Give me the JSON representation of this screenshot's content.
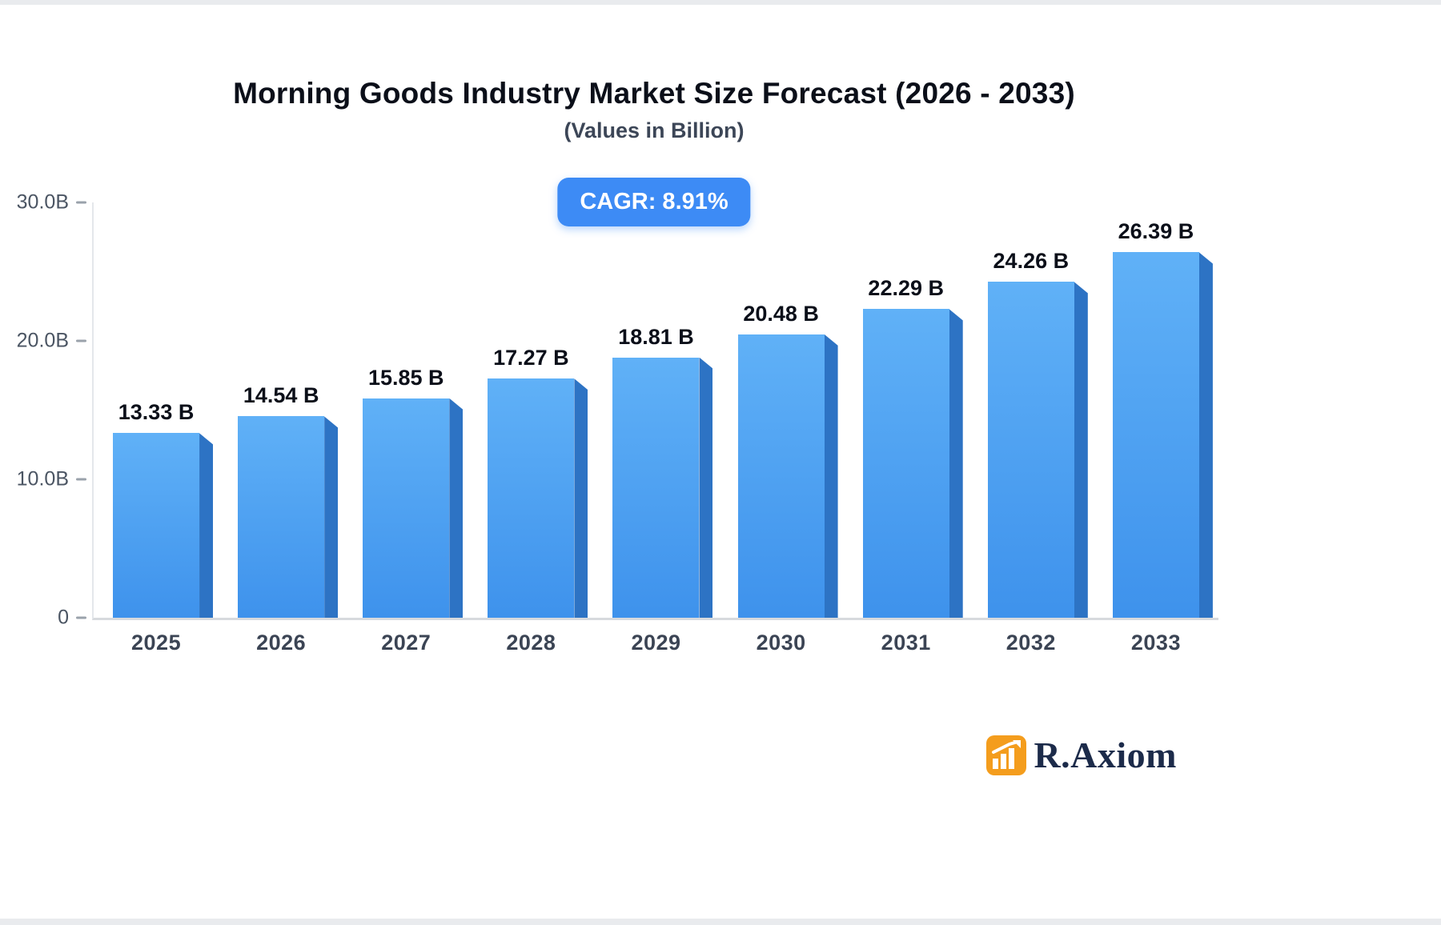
{
  "header": {
    "title": "Morning Goods Industry Market Size Forecast (2026 - 2033)",
    "subtitle": "(Values in Billion)"
  },
  "badge": {
    "label": "CAGR: 8.91%",
    "bg_color": "#3d8bf5"
  },
  "logo": {
    "text": "R.Axiom",
    "icon": "bar-chart-icon",
    "icon_color": "#f49d1d",
    "text_color": "#1c2b4a"
  },
  "chart_data": {
    "type": "bar",
    "title": "Morning Goods Industry Market Size Forecast (2026 - 2033)",
    "subtitle": "(Values in Billion)",
    "categories": [
      "2025",
      "2026",
      "2027",
      "2028",
      "2029",
      "2030",
      "2031",
      "2032",
      "2033"
    ],
    "values": [
      13.33,
      14.54,
      15.85,
      17.27,
      18.81,
      20.48,
      22.29,
      24.26,
      26.39
    ],
    "value_labels": [
      "13.33 B",
      "14.54 B",
      "15.85 B",
      "17.27 B",
      "18.81 B",
      "20.48 B",
      "22.29 B",
      "24.26 B",
      "26.39 B"
    ],
    "unit": "Billion",
    "cagr": "8.91%",
    "xlabel": "",
    "ylabel": "",
    "ylim": [
      0,
      30
    ],
    "yticks": [
      {
        "label": "0",
        "value": 0
      },
      {
        "label": "10.0B",
        "value": 10
      },
      {
        "label": "20.0B",
        "value": 20
      },
      {
        "label": "30.0B",
        "value": 30
      }
    ],
    "grid": false,
    "legend": "none",
    "bar_face_top": "#60b1f7",
    "bar_face_bottom": "#3e92ec",
    "bar_side_color": "#2d73c4"
  }
}
